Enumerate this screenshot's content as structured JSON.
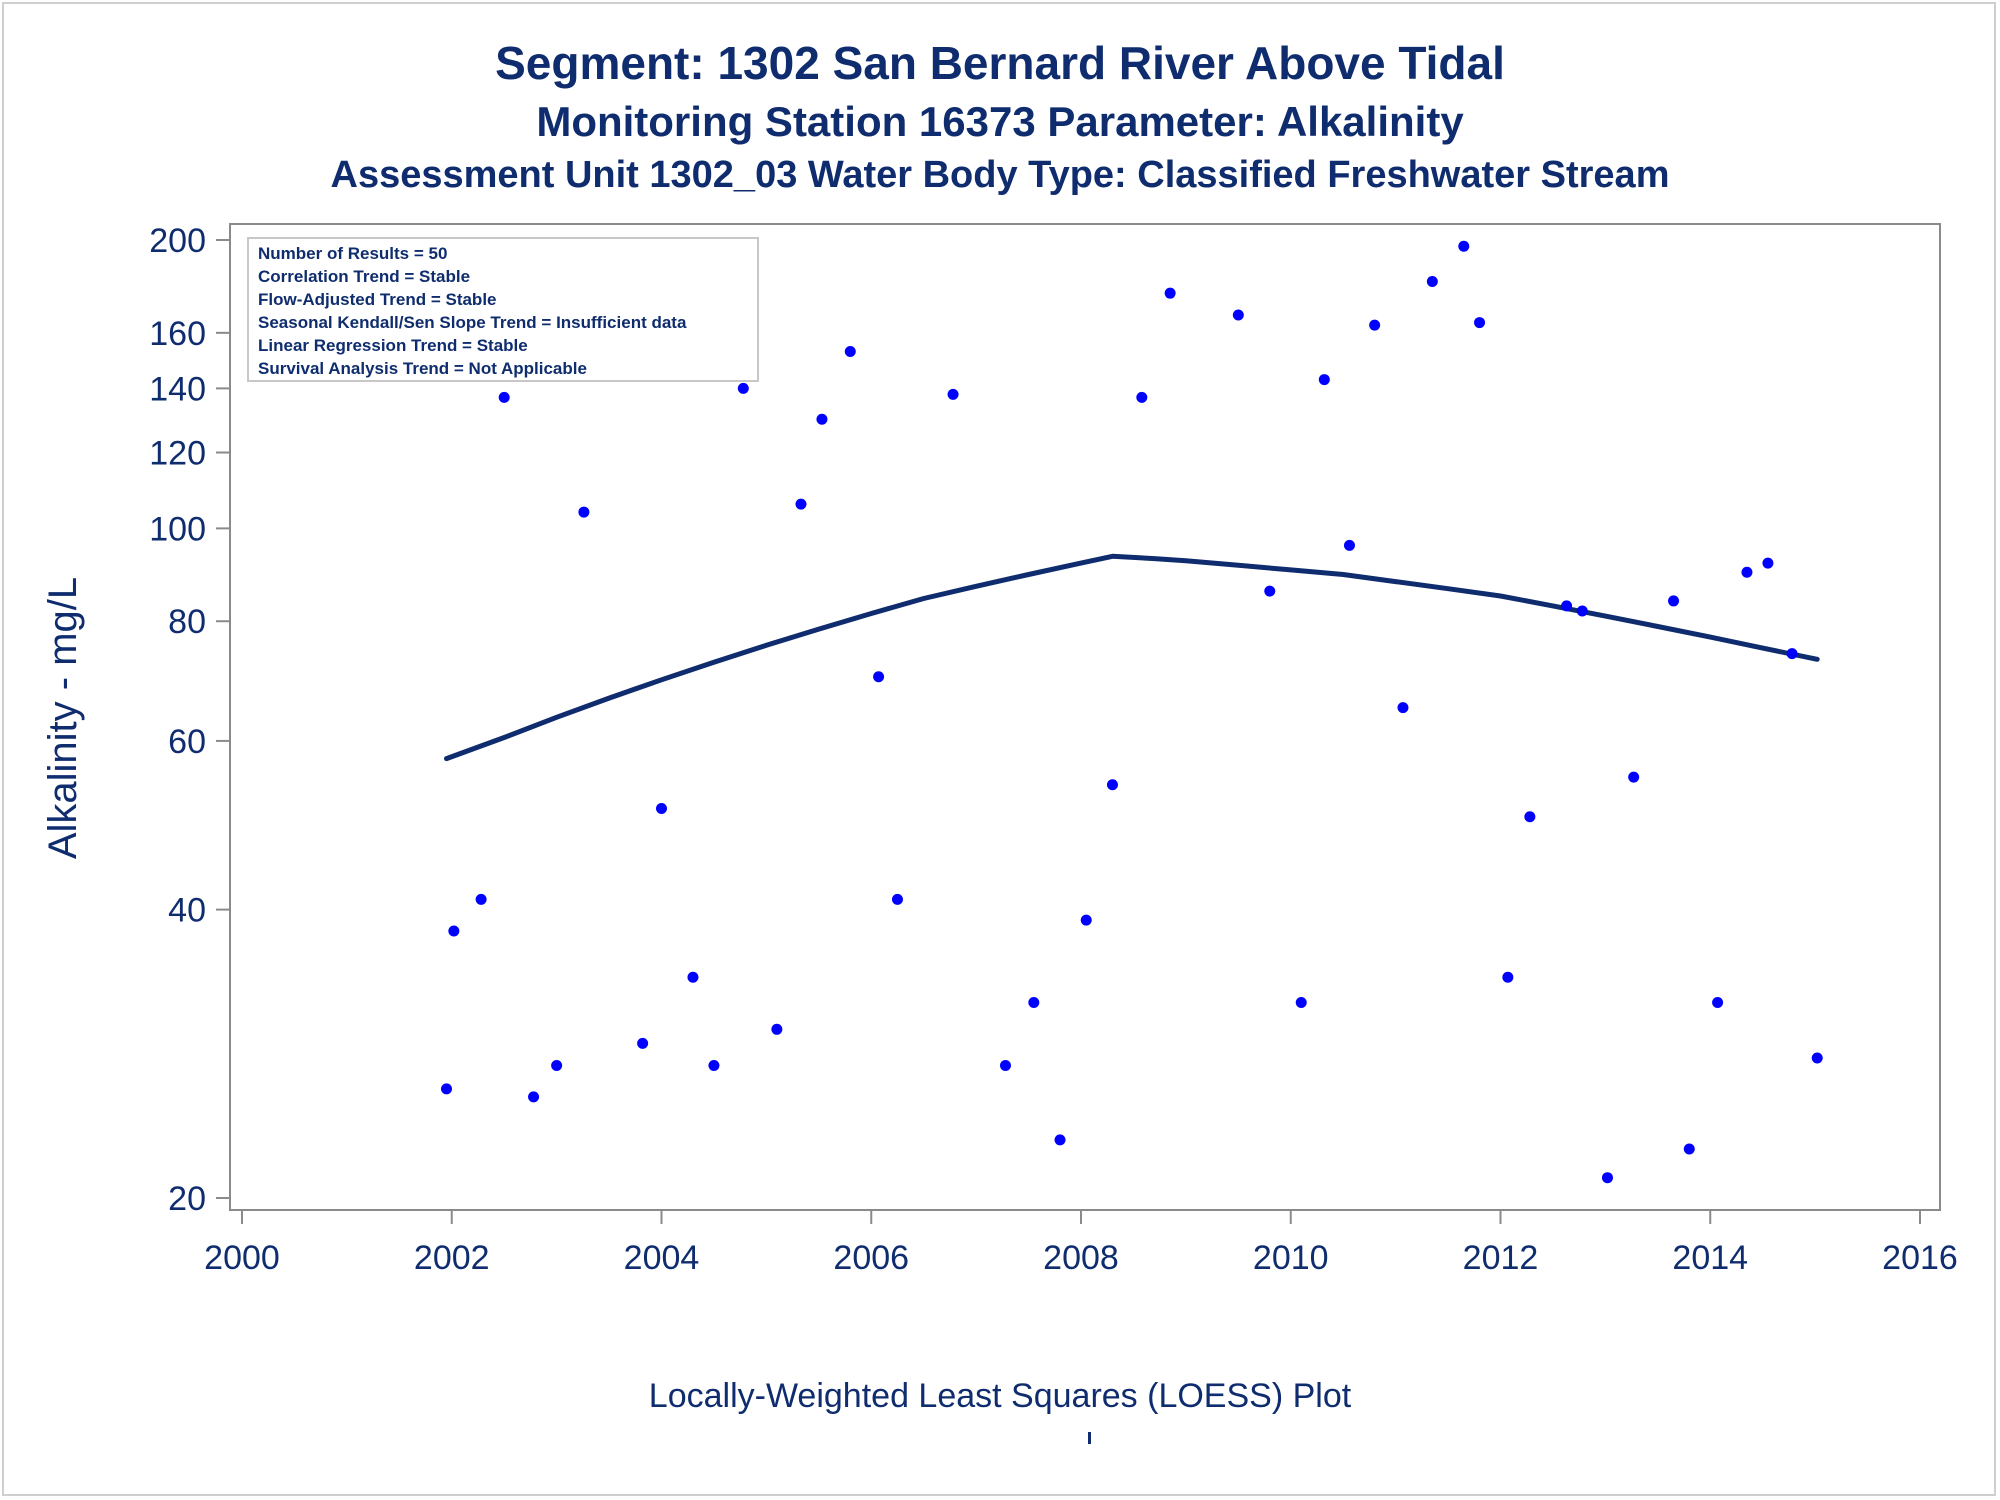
{
  "titles": {
    "line1": "Segment: 1302  San Bernard River Above Tidal",
    "line2": "Monitoring Station 16373 Parameter: Alkalinity",
    "line3": "Assessment Unit 1302_03   Water Body Type: Classified Freshwater Stream"
  },
  "footer": "Locally-Weighted Least Squares (LOESS) Plot",
  "colors": {
    "text": "#0f2d6e",
    "points": "#0000ff",
    "loess": "#0f2d6e",
    "axis": "#8a8a8a"
  },
  "chart_data": {
    "type": "scatter",
    "title": "Segment: 1302  San Bernard River Above Tidal",
    "xlabel": "",
    "ylabel": "Alkalinity - mg/L",
    "xlim": [
      2000,
      2016
    ],
    "ylim": [
      20,
      200
    ],
    "y_scale": "log",
    "grid": false,
    "xticks": [
      2000,
      2002,
      2004,
      2006,
      2008,
      2010,
      2012,
      2014,
      2016
    ],
    "yticks": [
      20,
      40,
      60,
      80,
      100,
      120,
      140,
      160,
      200
    ],
    "stats_box": {
      "placement": "top-left",
      "lines": [
        "Number of Results = 50",
        "Correlation Trend = Stable",
        "Flow-Adjusted Trend = Stable",
        "Seasonal Kendall/Sen Slope Trend = Insufficient data",
        "Linear Regression Trend = Stable",
        "Survival Analysis Trend = Not Applicable"
      ]
    },
    "points": [
      [
        2001.95,
        26
      ],
      [
        2002.02,
        38
      ],
      [
        2002.28,
        41
      ],
      [
        2002.5,
        137
      ],
      [
        2002.78,
        25.5
      ],
      [
        2003.0,
        27.5
      ],
      [
        2003.26,
        104
      ],
      [
        2003.5,
        151
      ],
      [
        2003.82,
        29
      ],
      [
        2004.0,
        51
      ],
      [
        2004.3,
        34
      ],
      [
        2004.5,
        27.5
      ],
      [
        2004.78,
        140
      ],
      [
        2005.1,
        30
      ],
      [
        2005.33,
        106
      ],
      [
        2005.53,
        130
      ],
      [
        2005.8,
        153
      ],
      [
        2006.07,
        70
      ],
      [
        2006.25,
        41
      ],
      [
        2006.78,
        138
      ],
      [
        2007.28,
        27.5
      ],
      [
        2007.55,
        32
      ],
      [
        2007.8,
        23
      ],
      [
        2008.05,
        39
      ],
      [
        2008.3,
        54
      ],
      [
        2008.58,
        137
      ],
      [
        2008.85,
        176
      ],
      [
        2009.5,
        167
      ],
      [
        2009.8,
        86
      ],
      [
        2010.1,
        32
      ],
      [
        2010.32,
        143
      ],
      [
        2010.56,
        96
      ],
      [
        2010.8,
        163
      ],
      [
        2011.07,
        65
      ],
      [
        2011.35,
        181
      ],
      [
        2011.65,
        197
      ],
      [
        2011.8,
        164
      ],
      [
        2012.07,
        34
      ],
      [
        2012.28,
        50
      ],
      [
        2012.63,
        83
      ],
      [
        2012.78,
        82
      ],
      [
        2013.02,
        21
      ],
      [
        2013.27,
        55
      ],
      [
        2013.65,
        84
      ],
      [
        2013.8,
        22.5
      ],
      [
        2014.07,
        32
      ],
      [
        2014.35,
        90
      ],
      [
        2014.55,
        92
      ],
      [
        2014.78,
        74
      ],
      [
        2015.02,
        28
      ]
    ],
    "loess": [
      [
        2001.95,
        57.5
      ],
      [
        2002.5,
        60.5
      ],
      [
        2003.0,
        63.5
      ],
      [
        2003.5,
        66.5
      ],
      [
        2004.0,
        69.5
      ],
      [
        2004.5,
        72.5
      ],
      [
        2005.0,
        75.5
      ],
      [
        2005.5,
        78.5
      ],
      [
        2006.0,
        81.5
      ],
      [
        2006.5,
        84.5
      ],
      [
        2007.0,
        87.0
      ],
      [
        2007.5,
        89.5
      ],
      [
        2008.0,
        92.0
      ],
      [
        2008.3,
        93.5
      ],
      [
        2008.7,
        93.0
      ],
      [
        2009.0,
        92.5
      ],
      [
        2009.5,
        91.5
      ],
      [
        2010.0,
        90.5
      ],
      [
        2010.5,
        89.5
      ],
      [
        2011.0,
        88.0
      ],
      [
        2011.5,
        86.5
      ],
      [
        2012.0,
        85.0
      ],
      [
        2012.5,
        83.0
      ],
      [
        2013.0,
        81.0
      ],
      [
        2013.5,
        79.0
      ],
      [
        2014.0,
        77.0
      ],
      [
        2014.5,
        75.0
      ],
      [
        2015.02,
        73.0
      ]
    ]
  }
}
